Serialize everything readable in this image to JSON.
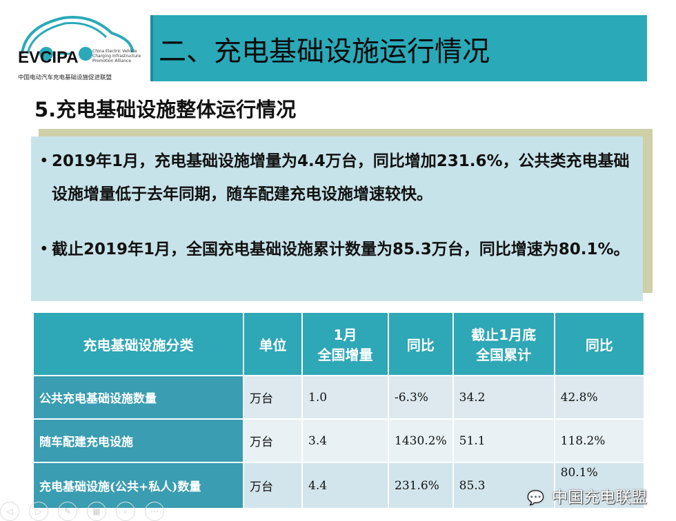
{
  "logo": {
    "brand": "EVCIPA",
    "en": "China Electric Vehicle Charging Infrastructure Promotion Alliance",
    "cn": "中国电动汽车充电基础设施促进联盟"
  },
  "title": "二、充电基础设施运行情况",
  "subtitle": "5.充电基础设施整体运行情况",
  "bullets": [
    "2019年1月，充电基础设施增量为4.4万台，同比增加231.6%，公共类充电基础设施增量低于去年同期，随车配建充电设施增速较快。",
    "截止2019年1月，全国充电基础设施累计数量为85.3万台，同比增速为80.1%。"
  ],
  "table": {
    "headers": [
      "充电基础设施分类",
      "单位",
      "1月\n全国增量",
      "同比",
      "截止1月底\n全国累计",
      "同比"
    ],
    "rows": [
      [
        "公共充电基础设施数量",
        "万台",
        "1.0",
        "-6.3%",
        "34.2",
        "42.8%"
      ],
      [
        "随车配建充电设施",
        "万台",
        "3.4",
        "1430.2%",
        "51.1",
        "118.2%"
      ],
      [
        "充电基础设施(公共+私人)数量",
        "万台",
        "4.4",
        "231.6%",
        "85.3",
        "80.1%"
      ]
    ]
  },
  "watermark": "中国充电联盟",
  "colors": {
    "title_bar": "#2aa9b8",
    "box": "#c7e3ea",
    "header": "#2ea7b6"
  }
}
